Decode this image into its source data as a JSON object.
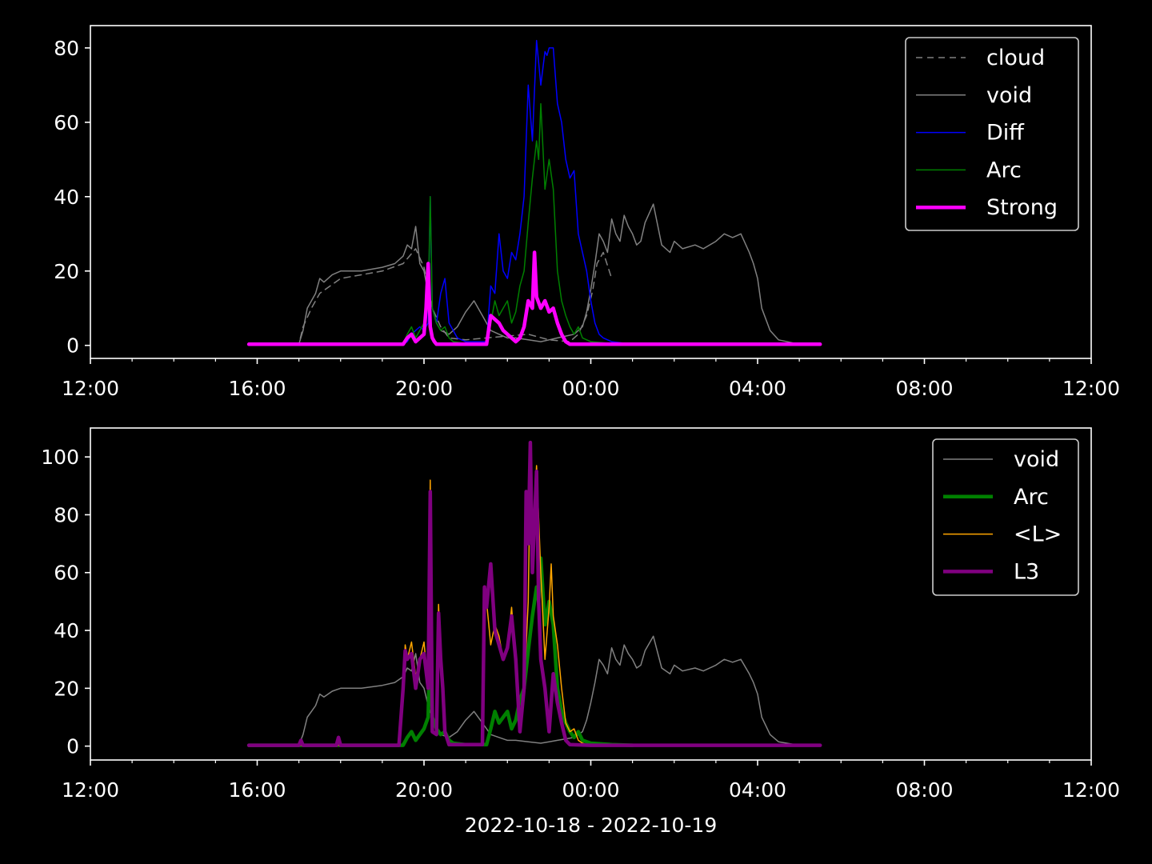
{
  "figure": {
    "background": "#000000",
    "foreground": "#ffffff"
  },
  "chart_data": [
    {
      "type": "line",
      "xlim": [
        "12:00",
        "12:00 (+1 day)"
      ],
      "x_unit": "hours since 2022-10-18 12:00",
      "xticks": [
        {
          "x": 0,
          "label": "12:00"
        },
        {
          "x": 4,
          "label": "16:00"
        },
        {
          "x": 8,
          "label": "20:00"
        },
        {
          "x": 12,
          "label": "00:00"
        },
        {
          "x": 16,
          "label": "04:00"
        },
        {
          "x": 20,
          "label": "08:00"
        },
        {
          "x": 24,
          "label": "12:00"
        }
      ],
      "ylim": [
        -3.5,
        86
      ],
      "yticks": [
        0,
        20,
        40,
        60,
        80
      ],
      "xlabel": "",
      "legend": "top-right",
      "series": [
        {
          "name": "cloud",
          "color": "#808080",
          "width": 1.5,
          "dash": "8,6",
          "x": [
            3.8,
            5.0,
            5.1,
            5.3,
            5.5,
            6.0,
            7.0,
            7.5,
            7.8,
            8.0,
            8.2,
            8.4,
            8.6,
            9.0,
            9.5,
            10.0,
            10.5,
            11.0,
            11.5,
            11.7,
            11.9,
            12.05,
            12.15,
            12.3,
            12.5
          ],
          "y": [
            0.3,
            0.3,
            5,
            10,
            14,
            18,
            20,
            22,
            26,
            21,
            10,
            5,
            2,
            1.5,
            2,
            2.5,
            3,
            1.5,
            1,
            3,
            8,
            15,
            22,
            25,
            18
          ]
        },
        {
          "name": "void",
          "color": "#808080",
          "width": 1.5,
          "x": [
            3.8,
            4.5,
            5.0,
            5.1,
            5.2,
            5.3,
            5.4,
            5.5,
            5.6,
            5.7,
            5.8,
            6.0,
            6.5,
            7.0,
            7.3,
            7.5,
            7.6,
            7.7,
            7.8,
            7.9,
            8.0,
            8.1,
            8.2,
            8.3,
            8.4,
            8.6,
            8.8,
            9.0,
            9.2,
            9.4,
            9.6,
            9.8,
            10.0,
            10.2,
            10.5,
            10.8,
            11.0,
            11.2,
            11.4,
            11.6,
            11.8,
            11.9,
            12.0,
            12.1,
            12.2,
            12.3,
            12.4,
            12.5,
            12.6,
            12.7,
            12.8,
            12.9,
            13.0,
            13.1,
            13.2,
            13.3,
            13.5,
            13.7,
            13.9,
            14.0,
            14.2,
            14.5,
            14.7,
            15.0,
            15.2,
            15.4,
            15.6,
            15.8,
            15.9,
            16.0,
            16.1,
            16.2,
            16.3,
            16.5,
            17.0,
            17.5
          ],
          "y": [
            0.3,
            0.3,
            0.3,
            4,
            10,
            12,
            14,
            18,
            17,
            18,
            19,
            20,
            20,
            21,
            22,
            24,
            27,
            26,
            32,
            22,
            20,
            14,
            10,
            6,
            4,
            3,
            5,
            9,
            12,
            8,
            4,
            3,
            2,
            2,
            1.5,
            1,
            1.5,
            2,
            2.5,
            3,
            5,
            9,
            15,
            22,
            30,
            28,
            25,
            34,
            30,
            28,
            35,
            32,
            30,
            27,
            28,
            33,
            38,
            27,
            25,
            28,
            26,
            27,
            26,
            28,
            30,
            29,
            30,
            25,
            22,
            18,
            10,
            7,
            4,
            1.5,
            0.3,
            0.3
          ]
        },
        {
          "name": "Diff",
          "color": "#0000ff",
          "width": 1.5,
          "x": [
            3.8,
            5.0,
            7.5,
            7.6,
            7.7,
            7.8,
            7.9,
            8.0,
            8.1,
            8.15,
            8.2,
            8.25,
            8.3,
            8.4,
            8.5,
            8.6,
            8.7,
            8.8,
            9.0,
            9.5,
            9.6,
            9.7,
            9.8,
            9.9,
            10.0,
            10.1,
            10.2,
            10.3,
            10.4,
            10.5,
            10.6,
            10.7,
            10.8,
            10.9,
            10.95,
            11.0,
            11.1,
            11.2,
            11.3,
            11.4,
            11.5,
            11.6,
            11.7,
            11.8,
            11.9,
            12.0,
            12.1,
            12.2,
            12.3,
            12.5,
            13.0
          ],
          "y": [
            0.3,
            0.3,
            0.3,
            1,
            3,
            4,
            5,
            4,
            6,
            40,
            10,
            8,
            6,
            14,
            18,
            6,
            4,
            2,
            1,
            1,
            16,
            14,
            30,
            20,
            18,
            25,
            23,
            30,
            40,
            70,
            55,
            82,
            70,
            79,
            78,
            80,
            80,
            65,
            60,
            50,
            45,
            47,
            30,
            25,
            20,
            12,
            6,
            3,
            2,
            1,
            0.3
          ]
        },
        {
          "name": "Arc",
          "color": "#008000",
          "width": 1.5,
          "x": [
            3.8,
            7.5,
            7.6,
            7.7,
            7.8,
            7.9,
            8.0,
            8.1,
            8.15,
            8.2,
            8.3,
            8.4,
            8.5,
            8.6,
            8.7,
            9.0,
            9.5,
            9.6,
            9.7,
            9.8,
            9.9,
            10.0,
            10.1,
            10.2,
            10.3,
            10.4,
            10.5,
            10.6,
            10.7,
            10.75,
            10.8,
            10.9,
            11.0,
            11.1,
            11.2,
            11.3,
            11.4,
            11.5,
            11.6,
            11.7,
            11.8,
            12.0,
            12.5,
            13.0
          ],
          "y": [
            0.3,
            0.3,
            3,
            5,
            2,
            4,
            6,
            10,
            40,
            10,
            6,
            4,
            5,
            2,
            1,
            0.5,
            0.5,
            6,
            12,
            8,
            10,
            12,
            6,
            9,
            16,
            20,
            33,
            45,
            55,
            50,
            65,
            42,
            50,
            42,
            20,
            12,
            8,
            5,
            3,
            5,
            2,
            1,
            0.5,
            0.3
          ]
        },
        {
          "name": "Strong",
          "color": "#ff00ff",
          "width": 4.5,
          "x": [
            3.8,
            7.5,
            7.6,
            7.7,
            7.8,
            7.9,
            8.0,
            8.05,
            8.1,
            8.15,
            8.2,
            8.25,
            8.3,
            9.5,
            9.6,
            9.7,
            9.8,
            9.9,
            10.0,
            10.1,
            10.2,
            10.3,
            10.4,
            10.5,
            10.6,
            10.65,
            10.7,
            10.8,
            10.9,
            11.0,
            11.1,
            11.2,
            11.3,
            11.4,
            11.5,
            11.7,
            13.0,
            17.5
          ],
          "y": [
            0.3,
            0.3,
            2,
            3,
            1,
            2,
            3,
            10,
            22,
            5,
            2,
            1,
            0.3,
            0.3,
            8,
            7,
            6,
            4,
            3,
            2,
            1,
            2,
            5,
            12,
            10,
            25,
            13,
            10,
            12,
            9,
            10,
            6,
            3,
            1,
            0.3,
            0.3,
            0.3,
            0.3
          ]
        }
      ]
    },
    {
      "type": "line",
      "xlim": [
        "12:00",
        "12:00 (+1 day)"
      ],
      "x_unit": "hours since 2022-10-18 12:00",
      "xticks": [
        {
          "x": 0,
          "label": "12:00"
        },
        {
          "x": 4,
          "label": "16:00"
        },
        {
          "x": 8,
          "label": "20:00"
        },
        {
          "x": 12,
          "label": "00:00"
        },
        {
          "x": 16,
          "label": "04:00"
        },
        {
          "x": 20,
          "label": "08:00"
        },
        {
          "x": 24,
          "label": "12:00"
        }
      ],
      "ylim": [
        -4.8,
        110
      ],
      "yticks": [
        0,
        20,
        40,
        60,
        80,
        100
      ],
      "xlabel": "2022-10-18 - 2022-10-19",
      "legend": "top-right",
      "series": [
        {
          "name": "void",
          "color": "#808080",
          "width": 1.5,
          "x": [
            3.8,
            4.5,
            5.0,
            5.1,
            5.2,
            5.3,
            5.4,
            5.5,
            5.6,
            5.7,
            5.8,
            6.0,
            6.5,
            7.0,
            7.3,
            7.5,
            7.6,
            7.7,
            7.8,
            7.9,
            8.0,
            8.1,
            8.2,
            8.3,
            8.4,
            8.6,
            8.8,
            9.0,
            9.2,
            9.4,
            9.6,
            9.8,
            10.0,
            10.2,
            10.5,
            10.8,
            11.0,
            11.2,
            11.4,
            11.6,
            11.8,
            11.9,
            12.0,
            12.1,
            12.2,
            12.3,
            12.4,
            12.5,
            12.6,
            12.7,
            12.8,
            12.9,
            13.0,
            13.1,
            13.2,
            13.3,
            13.5,
            13.7,
            13.9,
            14.0,
            14.2,
            14.5,
            14.7,
            15.0,
            15.2,
            15.4,
            15.6,
            15.8,
            15.9,
            16.0,
            16.1,
            16.2,
            16.3,
            16.5,
            17.0,
            17.5
          ],
          "y": [
            0.3,
            0.3,
            0.3,
            4,
            10,
            12,
            14,
            18,
            17,
            18,
            19,
            20,
            20,
            21,
            22,
            24,
            27,
            26,
            32,
            22,
            20,
            14,
            10,
            6,
            4,
            3,
            5,
            9,
            12,
            8,
            4,
            3,
            2,
            2,
            1.5,
            1,
            1.5,
            2,
            2.5,
            3,
            5,
            9,
            15,
            22,
            30,
            28,
            25,
            34,
            30,
            28,
            35,
            32,
            30,
            27,
            28,
            33,
            38,
            27,
            25,
            28,
            26,
            27,
            26,
            28,
            30,
            29,
            30,
            25,
            22,
            18,
            10,
            7,
            4,
            1.5,
            0.3,
            0.3
          ]
        },
        {
          "name": "Arc",
          "color": "#008000",
          "width": 4.5,
          "x": [
            3.8,
            7.5,
            7.6,
            7.7,
            7.8,
            7.9,
            8.0,
            8.1,
            8.15,
            8.2,
            8.3,
            8.4,
            8.5,
            8.6,
            8.7,
            9.0,
            9.5,
            9.6,
            9.7,
            9.8,
            9.9,
            10.0,
            10.1,
            10.2,
            10.3,
            10.4,
            10.5,
            10.6,
            10.7,
            10.75,
            10.8,
            10.9,
            11.0,
            11.1,
            11.2,
            11.3,
            11.4,
            11.5,
            11.6,
            11.7,
            11.8,
            12.0,
            12.5,
            13.0
          ],
          "y": [
            0.3,
            0.3,
            3,
            5,
            2,
            4,
            6,
            10,
            40,
            10,
            6,
            4,
            5,
            2,
            1,
            0.5,
            0.5,
            6,
            12,
            8,
            10,
            12,
            6,
            9,
            16,
            20,
            33,
            45,
            55,
            50,
            65,
            42,
            50,
            42,
            20,
            12,
            8,
            5,
            3,
            5,
            2,
            1,
            0.5,
            0.3
          ]
        },
        {
          "name": "<L>",
          "color": "#ffa500",
          "width": 1.5,
          "x": [
            3.8,
            7.4,
            7.5,
            7.55,
            7.6,
            7.7,
            7.8,
            7.9,
            8.0,
            8.1,
            8.15,
            8.2,
            8.3,
            8.35,
            8.4,
            8.45,
            8.5,
            8.6,
            9.4,
            9.45,
            9.5,
            9.6,
            9.7,
            9.8,
            9.9,
            10.0,
            10.1,
            10.2,
            10.3,
            10.4,
            10.5,
            10.55,
            10.6,
            10.7,
            10.8,
            10.9,
            11.0,
            11.05,
            11.1,
            11.2,
            11.3,
            11.4,
            11.5,
            11.6,
            11.7,
            11.8,
            11.9,
            12.0,
            17.5
          ],
          "y": [
            0.3,
            0.3,
            20,
            35,
            30,
            36,
            24,
            30,
            36,
            20,
            92,
            5,
            4,
            49,
            30,
            20,
            5,
            0.5,
            0.5,
            52,
            50,
            35,
            42,
            38,
            30,
            34,
            48,
            30,
            8,
            20,
            50,
            98,
            70,
            97,
            60,
            30,
            48,
            63,
            45,
            35,
            20,
            8,
            5,
            6,
            2,
            1,
            0.5,
            0.3,
            0.3
          ]
        },
        {
          "name": "L3",
          "color": "#800080",
          "width": 4.5,
          "x": [
            3.8,
            5.0,
            5.05,
            5.1,
            5.5,
            5.9,
            5.95,
            6.0,
            7.4,
            7.5,
            7.55,
            7.6,
            7.7,
            7.8,
            7.9,
            8.0,
            8.1,
            8.15,
            8.2,
            8.3,
            8.35,
            8.4,
            8.45,
            8.5,
            8.6,
            9.4,
            9.45,
            9.5,
            9.6,
            9.7,
            9.8,
            9.9,
            10.0,
            10.1,
            10.2,
            10.3,
            10.4,
            10.45,
            10.5,
            10.55,
            10.6,
            10.7,
            10.75,
            10.8,
            10.9,
            11.0,
            11.1,
            11.2,
            11.3,
            11.4,
            11.5,
            12.0,
            17.5
          ],
          "y": [
            0.3,
            0.3,
            2,
            0.3,
            0.3,
            0.3,
            3,
            0.3,
            0.3,
            20,
            33,
            30,
            32,
            20,
            30,
            32,
            20,
            88,
            5,
            4,
            46,
            30,
            20,
            5,
            0.5,
            0.5,
            55,
            48,
            63,
            40,
            35,
            30,
            34,
            45,
            30,
            5,
            20,
            88,
            70,
            105,
            60,
            95,
            50,
            30,
            20,
            5,
            25,
            15,
            8,
            2,
            0.5,
            0.3,
            0.3
          ]
        }
      ]
    }
  ]
}
